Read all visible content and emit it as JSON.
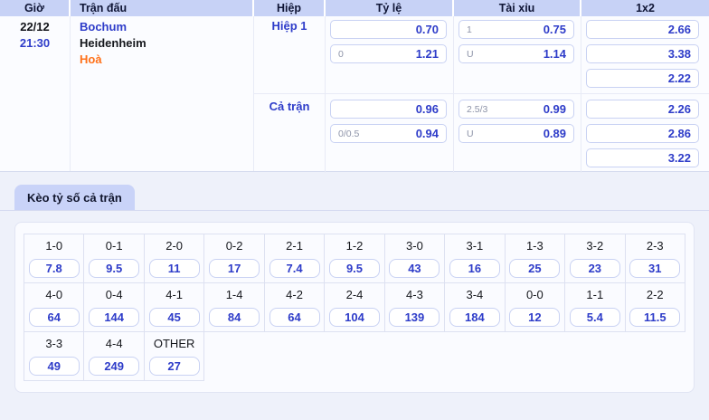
{
  "colors": {
    "accent_blue": "#2e3cc9",
    "header_bg": "#c7d2f6",
    "draw_orange": "#ff7119",
    "page_bg": "#eef1fa"
  },
  "odds_table": {
    "columns": [
      "Giờ",
      "Trận đấu",
      "Hiệp",
      "Tỷ lệ",
      "Tài xỉu",
      "1x2"
    ],
    "match": {
      "date": "22/12",
      "time": "21:30",
      "home": "Bochum",
      "away": "Heidenheim",
      "draw_label": "Hoà"
    },
    "periods": [
      {
        "label": "Hiệp 1",
        "ty_le": [
          {
            "handicap": "",
            "odds": "0.70"
          },
          {
            "handicap": "0",
            "odds": "1.21"
          }
        ],
        "tai_xiu": [
          {
            "line": "1",
            "odds": "0.75"
          },
          {
            "line": "U",
            "odds": "1.14"
          }
        ],
        "one_x_two": [
          "2.66",
          "3.38",
          "2.22"
        ]
      },
      {
        "label": "Cả trận",
        "ty_le": [
          {
            "handicap": "",
            "odds": "0.96"
          },
          {
            "handicap": "0/0.5",
            "odds": "0.94"
          }
        ],
        "tai_xiu": [
          {
            "line": "2.5/3",
            "odds": "0.99"
          },
          {
            "line": "U",
            "odds": "0.89"
          }
        ],
        "one_x_two": [
          "2.26",
          "2.86",
          "3.22"
        ]
      }
    ]
  },
  "score_section": {
    "tab_label": "Kèo tỷ số cả trận",
    "columns_per_row": 11,
    "rows": [
      [
        {
          "score": "1-0",
          "odds": "7.8"
        },
        {
          "score": "0-1",
          "odds": "9.5"
        },
        {
          "score": "2-0",
          "odds": "11"
        },
        {
          "score": "0-2",
          "odds": "17"
        },
        {
          "score": "2-1",
          "odds": "7.4"
        },
        {
          "score": "1-2",
          "odds": "9.5"
        },
        {
          "score": "3-0",
          "odds": "43"
        },
        {
          "score": "3-1",
          "odds": "16"
        },
        {
          "score": "1-3",
          "odds": "25"
        },
        {
          "score": "3-2",
          "odds": "23"
        },
        {
          "score": "2-3",
          "odds": "31"
        }
      ],
      [
        {
          "score": "4-0",
          "odds": "64"
        },
        {
          "score": "0-4",
          "odds": "144"
        },
        {
          "score": "4-1",
          "odds": "45"
        },
        {
          "score": "1-4",
          "odds": "84"
        },
        {
          "score": "4-2",
          "odds": "64"
        },
        {
          "score": "2-4",
          "odds": "104"
        },
        {
          "score": "4-3",
          "odds": "139"
        },
        {
          "score": "3-4",
          "odds": "184"
        },
        {
          "score": "0-0",
          "odds": "12"
        },
        {
          "score": "1-1",
          "odds": "5.4"
        },
        {
          "score": "2-2",
          "odds": "11.5"
        }
      ],
      [
        {
          "score": "3-3",
          "odds": "49"
        },
        {
          "score": "4-4",
          "odds": "249"
        },
        {
          "score": "OTHER",
          "odds": "27"
        }
      ]
    ]
  }
}
